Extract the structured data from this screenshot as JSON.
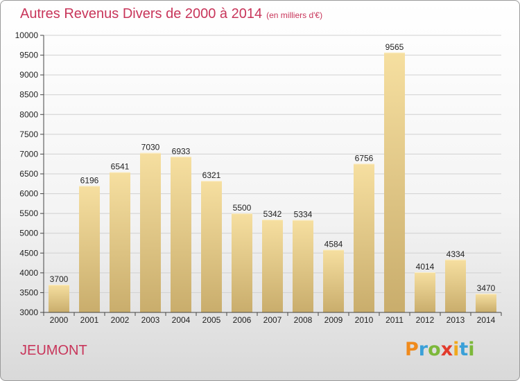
{
  "title": "Autres Revenus Divers de 2000 à 2014",
  "subtitle": "(en milliers d'€)",
  "city": "JEUMONT",
  "logo": {
    "text": "Proxiti",
    "letters": [
      {
        "char": "P",
        "color": "#f08a1c"
      },
      {
        "char": "r",
        "color": "#3aa0d8"
      },
      {
        "char": "o",
        "color": "#7cb83a"
      },
      {
        "char": "x",
        "color": "#e23a2c"
      },
      {
        "char": "i",
        "color": "#f0a81c"
      },
      {
        "char": "t",
        "color": "#3aa0d8"
      },
      {
        "char": "i",
        "color": "#7cb83a"
      }
    ]
  },
  "colors": {
    "title": "#c8355a",
    "bar_light": "#f6dfa0",
    "bar_dark": "#c9ad6c",
    "grid": "#d0d0d0",
    "axis": "#444444",
    "text": "#222222"
  },
  "chart_data": {
    "type": "bar",
    "title": "Autres Revenus Divers de 2000 à 2014",
    "categories": [
      "2000",
      "2001",
      "2002",
      "2003",
      "2004",
      "2005",
      "2006",
      "2007",
      "2008",
      "2009",
      "2010",
      "2011",
      "2012",
      "2013",
      "2014"
    ],
    "values": [
      3700,
      6196,
      6541,
      7030,
      6933,
      6321,
      5500,
      5342,
      5334,
      4584,
      6756,
      9565,
      4014,
      4334,
      3470
    ],
    "ylim": [
      3000,
      10000
    ],
    "yticks": [
      3000,
      3500,
      4000,
      4500,
      5000,
      5500,
      6000,
      6500,
      7000,
      7500,
      8000,
      8500,
      9000,
      9500,
      10000
    ],
    "xlabel": "",
    "ylabel": "",
    "grid": true,
    "data_labels": true
  }
}
